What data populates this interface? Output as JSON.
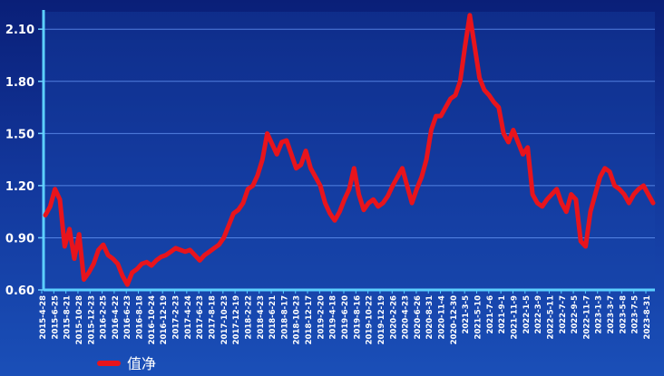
{
  "chart_data": {
    "type": "line",
    "title": "",
    "xlabel": "",
    "ylabel": "",
    "ylim": [
      0.6,
      2.2
    ],
    "y_ticks": [
      "0.60",
      "0.90",
      "1.20",
      "1.50",
      "1.80",
      "2.10"
    ],
    "x_tick_labels": [
      "2015-4-28",
      "2015-6-25",
      "2015-8-21",
      "2015-10-28",
      "2015-12-23",
      "2016-2-25",
      "2016-4-22",
      "2016-6-23",
      "2016-8-18",
      "2016-10-24",
      "2016-12-19",
      "2017-2-23",
      "2017-4-24",
      "2017-6-23",
      "2017-8-18",
      "2017-10-23",
      "2017-12-19",
      "2018-2-22",
      "2018-4-23",
      "2018-6-21",
      "2018-8-17",
      "2018-10-23",
      "2018-12-17",
      "2019-2-20",
      "2019-4-18",
      "2019-6-20",
      "2019-8-16",
      "2019-10-22",
      "2019-12-19",
      "2020-2-26",
      "2020-4-23",
      "2020-6-26",
      "2020-8-31",
      "2020-11-4",
      "2020-12-30",
      "2021-3-5",
      "2021-5-10",
      "2021-7-6",
      "2021-9-1",
      "2021-11-9",
      "2022-1-5",
      "2022-3-9",
      "2022-5-11",
      "2022-7-7",
      "2022-9-5",
      "2022-11-7",
      "2023-1-3",
      "2023-3-7",
      "2023-5-8",
      "2023-7-5",
      "2023-8-31"
    ],
    "legend": {
      "position": "bottom-left"
    },
    "grid": true,
    "series": [
      {
        "name": "值净",
        "color": "#e8141c",
        "values": [
          1.03,
          1.08,
          1.18,
          1.12,
          0.85,
          0.95,
          0.78,
          0.92,
          0.66,
          0.7,
          0.75,
          0.83,
          0.86,
          0.8,
          0.78,
          0.75,
          0.68,
          0.63,
          0.7,
          0.72,
          0.75,
          0.76,
          0.74,
          0.77,
          0.79,
          0.8,
          0.82,
          0.84,
          0.83,
          0.82,
          0.83,
          0.8,
          0.77,
          0.8,
          0.82,
          0.84,
          0.86,
          0.9,
          0.97,
          1.04,
          1.06,
          1.1,
          1.18,
          1.2,
          1.26,
          1.35,
          1.5,
          1.44,
          1.38,
          1.45,
          1.46,
          1.38,
          1.3,
          1.32,
          1.4,
          1.3,
          1.25,
          1.2,
          1.1,
          1.04,
          1.0,
          1.05,
          1.12,
          1.18,
          1.3,
          1.15,
          1.06,
          1.1,
          1.12,
          1.08,
          1.1,
          1.14,
          1.2,
          1.25,
          1.3,
          1.2,
          1.1,
          1.18,
          1.25,
          1.35,
          1.52,
          1.6,
          1.6,
          1.65,
          1.7,
          1.72,
          1.8,
          2.0,
          2.18,
          2.0,
          1.82,
          1.75,
          1.72,
          1.68,
          1.65,
          1.5,
          1.45,
          1.52,
          1.45,
          1.38,
          1.42,
          1.15,
          1.1,
          1.08,
          1.12,
          1.15,
          1.18,
          1.1,
          1.05,
          1.15,
          1.12,
          0.88,
          0.85,
          1.05,
          1.15,
          1.25,
          1.3,
          1.28,
          1.2,
          1.18,
          1.15,
          1.1,
          1.15,
          1.18,
          1.2,
          1.15,
          1.1
        ]
      }
    ]
  }
}
